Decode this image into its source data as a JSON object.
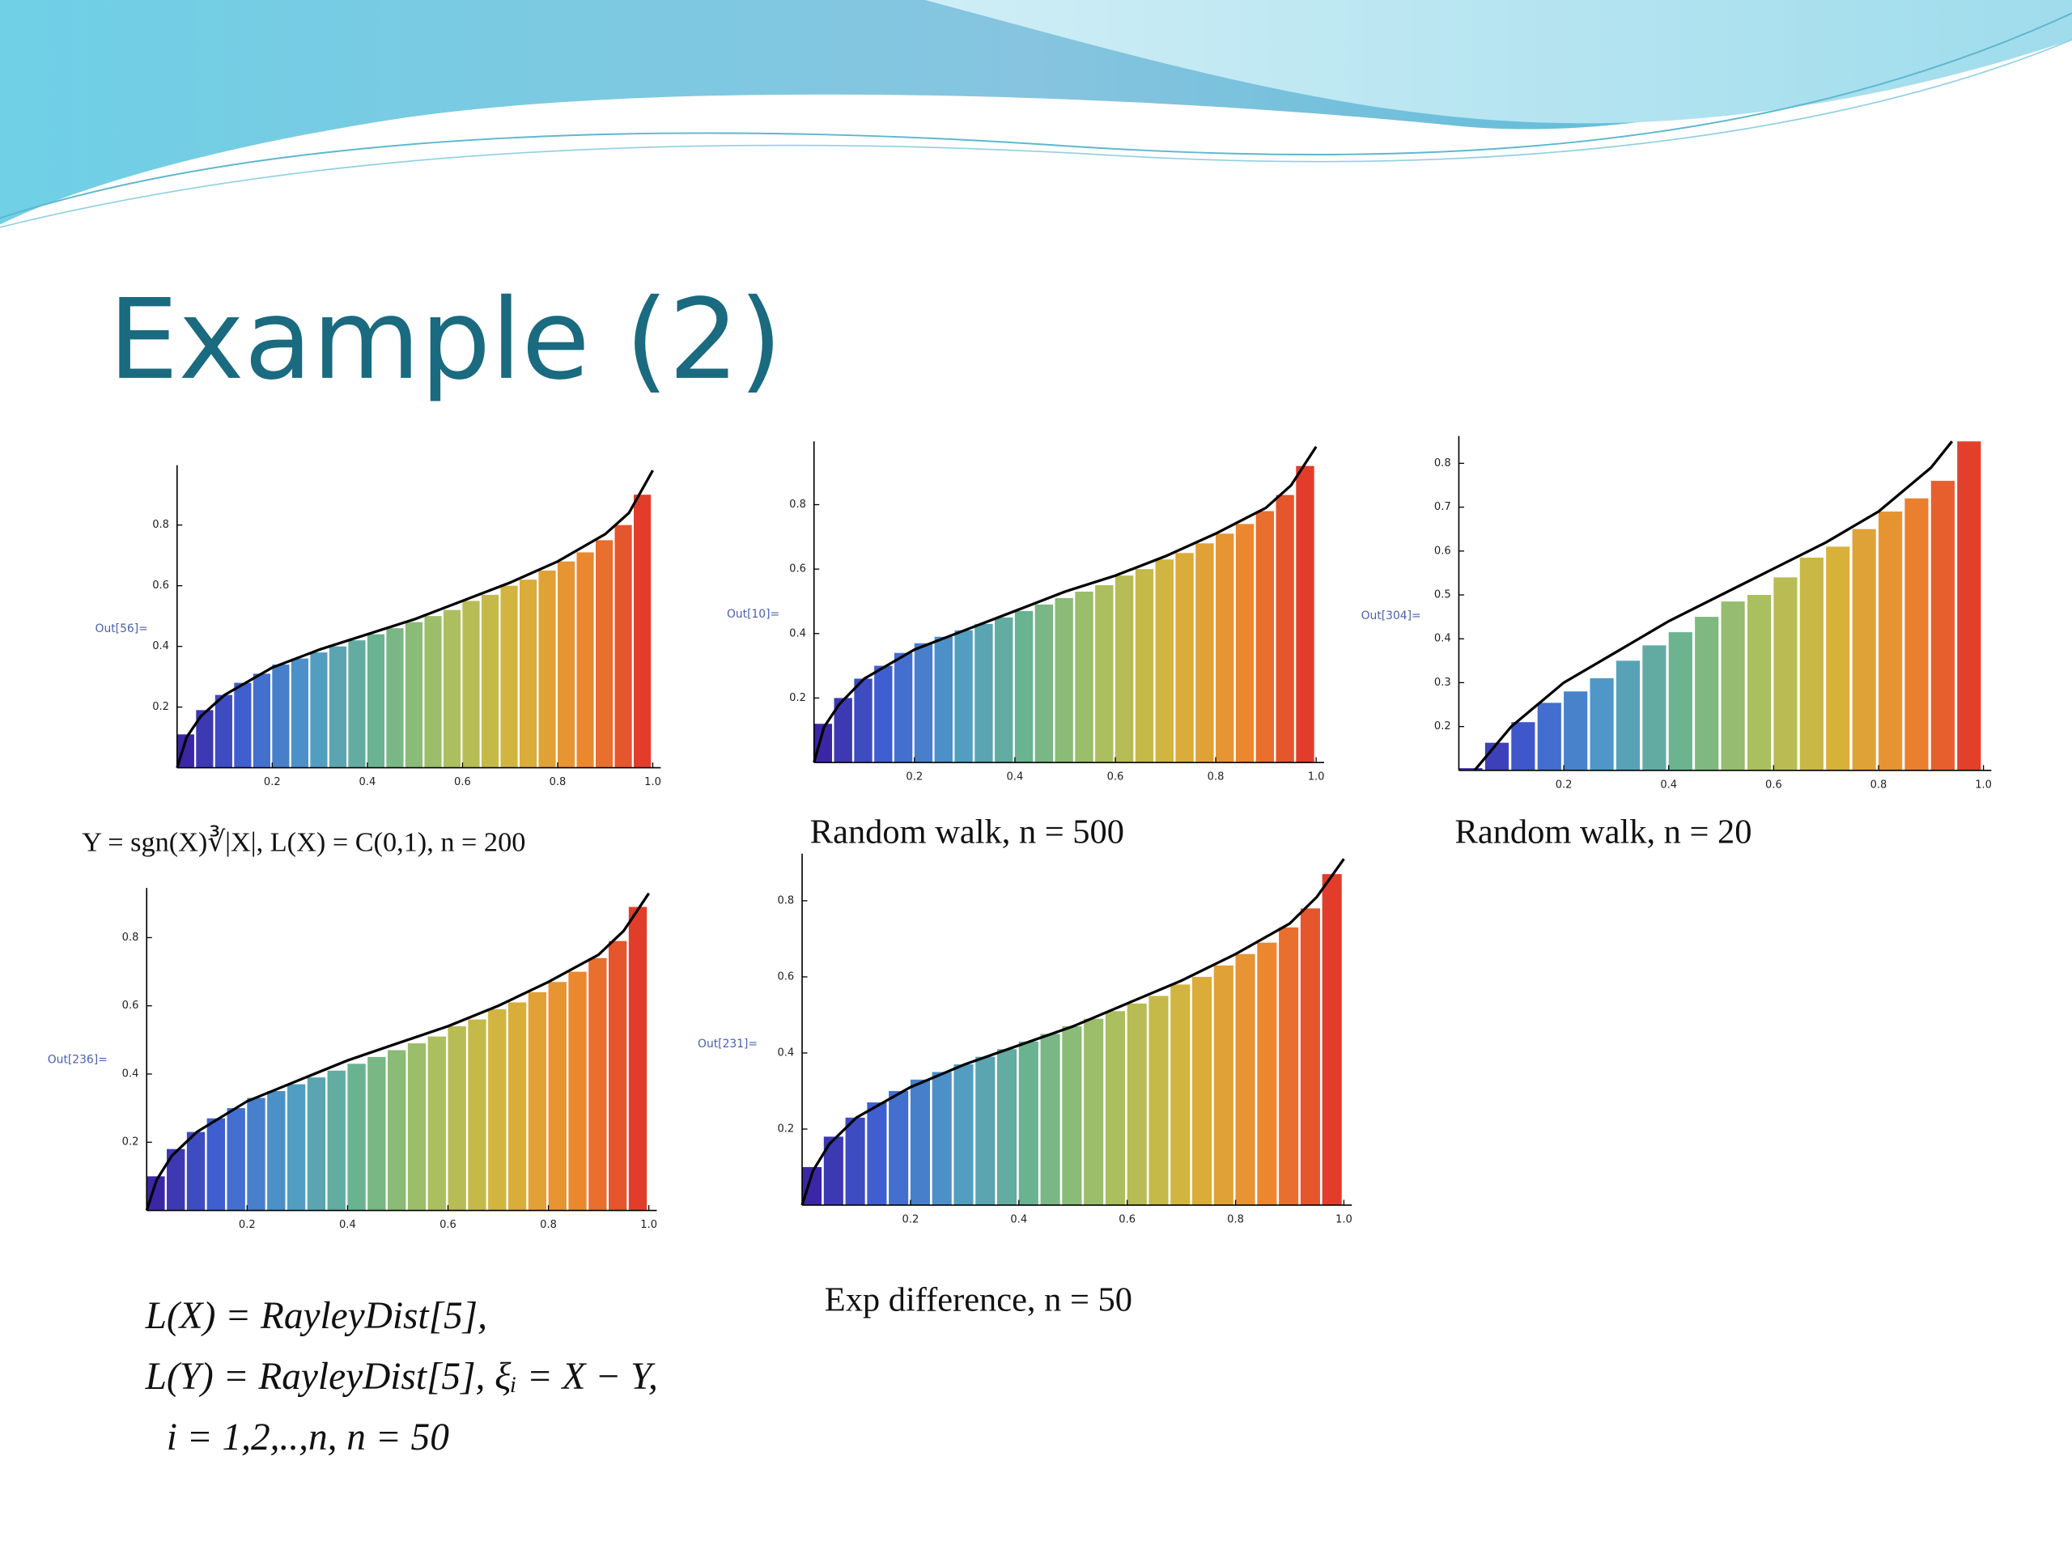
{
  "slide": {
    "title": "Example (2)"
  },
  "colormap": [
    "#3a1e9e",
    "#3f5fd0",
    "#4f9bc7",
    "#6cb58e",
    "#a8c060",
    "#d6b43c",
    "#eb8a2f",
    "#e0302a"
  ],
  "chart_data": [
    {
      "type": "bar",
      "out_label": "Out[56]=",
      "caption": [
        "Y = sgn(X)∛|X|,   L(X) = C(0,1),   n = 200"
      ],
      "x": [
        0.02,
        0.06,
        0.1,
        0.14,
        0.18,
        0.22,
        0.26,
        0.3,
        0.34,
        0.38,
        0.42,
        0.46,
        0.5,
        0.54,
        0.58,
        0.62,
        0.66,
        0.7,
        0.74,
        0.78,
        0.82,
        0.86,
        0.9,
        0.94,
        0.98
      ],
      "values": [
        0.11,
        0.19,
        0.24,
        0.28,
        0.31,
        0.34,
        0.36,
        0.38,
        0.4,
        0.42,
        0.44,
        0.46,
        0.48,
        0.5,
        0.52,
        0.55,
        0.57,
        0.6,
        0.62,
        0.65,
        0.68,
        0.71,
        0.75,
        0.8,
        0.9
      ],
      "curve_x": [
        0,
        0.02,
        0.05,
        0.1,
        0.2,
        0.3,
        0.4,
        0.5,
        0.6,
        0.7,
        0.8,
        0.9,
        0.95,
        1.0
      ],
      "curve_values": [
        0,
        0.1,
        0.17,
        0.24,
        0.33,
        0.39,
        0.44,
        0.49,
        0.55,
        0.61,
        0.68,
        0.77,
        0.84,
        0.98
      ],
      "curve_color": "#000000",
      "xlim": [
        0,
        1
      ],
      "ylim": [
        0,
        0.98
      ],
      "xticks": [
        0.2,
        0.4,
        0.6,
        0.8,
        {
          "value": 1,
          "label": "1.0"
        }
      ],
      "yticks": [
        0.2,
        0.4,
        0.6,
        0.8
      ]
    },
    {
      "type": "bar",
      "out_label": "Out[10]=",
      "caption": [
        "Random walk, n = 500"
      ],
      "x": [
        0.02,
        0.06,
        0.1,
        0.14,
        0.18,
        0.22,
        0.26,
        0.3,
        0.34,
        0.38,
        0.42,
        0.46,
        0.5,
        0.54,
        0.58,
        0.62,
        0.66,
        0.7,
        0.74,
        0.78,
        0.82,
        0.86,
        0.9,
        0.94,
        0.98
      ],
      "values": [
        0.12,
        0.2,
        0.26,
        0.3,
        0.34,
        0.37,
        0.39,
        0.41,
        0.43,
        0.45,
        0.47,
        0.49,
        0.51,
        0.53,
        0.55,
        0.58,
        0.6,
        0.63,
        0.65,
        0.68,
        0.71,
        0.74,
        0.78,
        0.83,
        0.92
      ],
      "curve_x": [
        0,
        0.02,
        0.05,
        0.1,
        0.2,
        0.3,
        0.4,
        0.5,
        0.6,
        0.7,
        0.8,
        0.9,
        0.95,
        1.0
      ],
      "curve_values": [
        0,
        0.11,
        0.18,
        0.26,
        0.35,
        0.41,
        0.47,
        0.53,
        0.58,
        0.64,
        0.71,
        0.79,
        0.86,
        0.98
      ],
      "curve_color": "#000000",
      "xlim": [
        0,
        1
      ],
      "ylim": [
        0,
        0.98
      ],
      "xticks": [
        0.2,
        0.4,
        0.6,
        0.8,
        {
          "value": 1,
          "label": "1.0"
        }
      ],
      "yticks": [
        0.2,
        0.4,
        0.6,
        0.8
      ]
    },
    {
      "type": "bar",
      "out_label": "Out[304]=",
      "caption": [
        "Random walk, n = 20"
      ],
      "x": [
        0.025,
        0.075,
        0.125,
        0.175,
        0.225,
        0.275,
        0.325,
        0.375,
        0.425,
        0.475,
        0.525,
        0.575,
        0.625,
        0.675,
        0.725,
        0.775,
        0.825,
        0.875,
        0.925,
        0.975
      ],
      "values": [
        0.105,
        0.163,
        0.21,
        0.254,
        0.28,
        0.31,
        0.35,
        0.385,
        0.415,
        0.45,
        0.485,
        0.5,
        0.54,
        0.585,
        0.61,
        0.65,
        0.69,
        0.72,
        0.76,
        0.85
      ],
      "curve_x": [
        0.03,
        0.1,
        0.2,
        0.3,
        0.4,
        0.5,
        0.6,
        0.7,
        0.8,
        0.9,
        0.94
      ],
      "curve_values": [
        0.1,
        0.2,
        0.3,
        0.37,
        0.44,
        0.5,
        0.56,
        0.62,
        0.69,
        0.79,
        0.85
      ],
      "curve_color": "#000000",
      "xlim": [
        0,
        1
      ],
      "ylim": [
        0.1,
        0.85
      ],
      "xticks": [
        0.2,
        0.4,
        0.6,
        0.8,
        {
          "value": 1,
          "label": "1.0"
        }
      ],
      "yticks": [
        0.2,
        0.3,
        0.4,
        0.5,
        0.6,
        0.7,
        0.8
      ]
    },
    {
      "type": "bar",
      "out_label": "Out[236]=",
      "caption": [
        "L(X) = RayleyDist[5],",
        "L(Y) = RayleyDist[5], ξᵢ = X − Y,",
        "i = 1,2,..,n,     n = 50"
      ],
      "x": [
        0.02,
        0.06,
        0.1,
        0.14,
        0.18,
        0.22,
        0.26,
        0.3,
        0.34,
        0.38,
        0.42,
        0.46,
        0.5,
        0.54,
        0.58,
        0.62,
        0.66,
        0.7,
        0.74,
        0.78,
        0.82,
        0.86,
        0.9,
        0.94,
        0.98
      ],
      "values": [
        0.1,
        0.18,
        0.23,
        0.27,
        0.3,
        0.33,
        0.35,
        0.37,
        0.39,
        0.41,
        0.43,
        0.45,
        0.47,
        0.49,
        0.51,
        0.54,
        0.56,
        0.59,
        0.61,
        0.64,
        0.67,
        0.7,
        0.74,
        0.79,
        0.89
      ],
      "curve_x": [
        0,
        0.02,
        0.05,
        0.1,
        0.2,
        0.3,
        0.4,
        0.5,
        0.6,
        0.7,
        0.8,
        0.9,
        0.95,
        1.0
      ],
      "curve_values": [
        0,
        0.09,
        0.16,
        0.23,
        0.32,
        0.38,
        0.44,
        0.49,
        0.54,
        0.6,
        0.67,
        0.75,
        0.82,
        0.93
      ],
      "curve_color": "#000000",
      "xlim": [
        0,
        1
      ],
      "ylim": [
        0,
        0.93
      ],
      "xticks": [
        0.2,
        0.4,
        0.6,
        0.8,
        {
          "value": 1,
          "label": "1.0"
        }
      ],
      "yticks": [
        0.2,
        0.4,
        0.6,
        0.8
      ]
    },
    {
      "type": "bar",
      "out_label": "Out[231]=",
      "caption": [
        "Exp difference, n = 50"
      ],
      "x": [
        0.02,
        0.06,
        0.1,
        0.14,
        0.18,
        0.22,
        0.26,
        0.3,
        0.34,
        0.38,
        0.42,
        0.46,
        0.5,
        0.54,
        0.58,
        0.62,
        0.66,
        0.7,
        0.74,
        0.78,
        0.82,
        0.86,
        0.9,
        0.94,
        0.98
      ],
      "values": [
        0.1,
        0.18,
        0.23,
        0.27,
        0.3,
        0.33,
        0.35,
        0.37,
        0.39,
        0.41,
        0.43,
        0.45,
        0.47,
        0.49,
        0.51,
        0.53,
        0.55,
        0.58,
        0.6,
        0.63,
        0.66,
        0.69,
        0.73,
        0.78,
        0.87
      ],
      "curve_x": [
        0,
        0.02,
        0.05,
        0.1,
        0.2,
        0.3,
        0.4,
        0.5,
        0.6,
        0.7,
        0.8,
        0.9,
        0.95,
        1.0
      ],
      "curve_values": [
        0,
        0.09,
        0.16,
        0.23,
        0.31,
        0.37,
        0.42,
        0.47,
        0.53,
        0.59,
        0.66,
        0.74,
        0.81,
        0.91
      ],
      "curve_color": "#000000",
      "xlim": [
        0,
        1
      ],
      "ylim": [
        0,
        0.91
      ],
      "xticks": [
        0.2,
        0.4,
        0.6,
        0.8,
        {
          "value": 1,
          "label": "1.0"
        }
      ],
      "yticks": [
        0.2,
        0.4,
        0.6,
        0.8
      ]
    }
  ]
}
